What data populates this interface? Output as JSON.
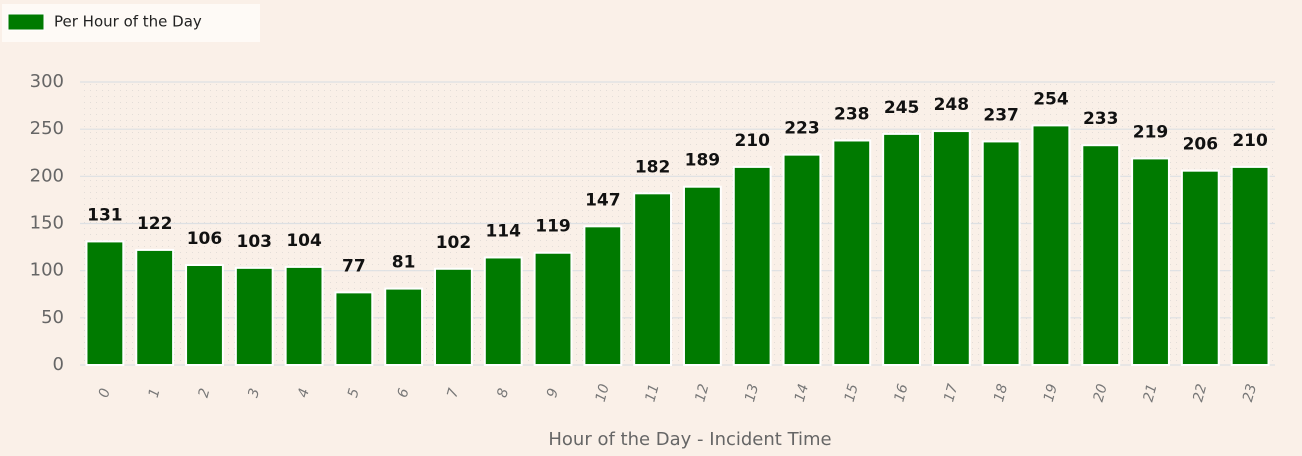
{
  "chart_data": {
    "type": "bar",
    "x_label": "Hour of the Day - Incident Time",
    "categories": [
      "0",
      "1",
      "2",
      "3",
      "4",
      "5",
      "6",
      "7",
      "8",
      "9",
      "10",
      "11",
      "12",
      "13",
      "14",
      "15",
      "16",
      "17",
      "18",
      "19",
      "20",
      "21",
      "22",
      "23"
    ],
    "series": [
      {
        "name": "Per Hour of the Day",
        "color": "#007a00",
        "values": [
          131,
          122,
          106,
          103,
          104,
          77,
          81,
          102,
          114,
          119,
          147,
          182,
          189,
          210,
          223,
          238,
          245,
          248,
          237,
          254,
          233,
          219,
          206,
          210
        ]
      }
    ],
    "ylim": [
      0,
      300
    ],
    "yticks": [
      0,
      50,
      100,
      150,
      200,
      250,
      300
    ],
    "grid": true,
    "legend": "top-left"
  }
}
